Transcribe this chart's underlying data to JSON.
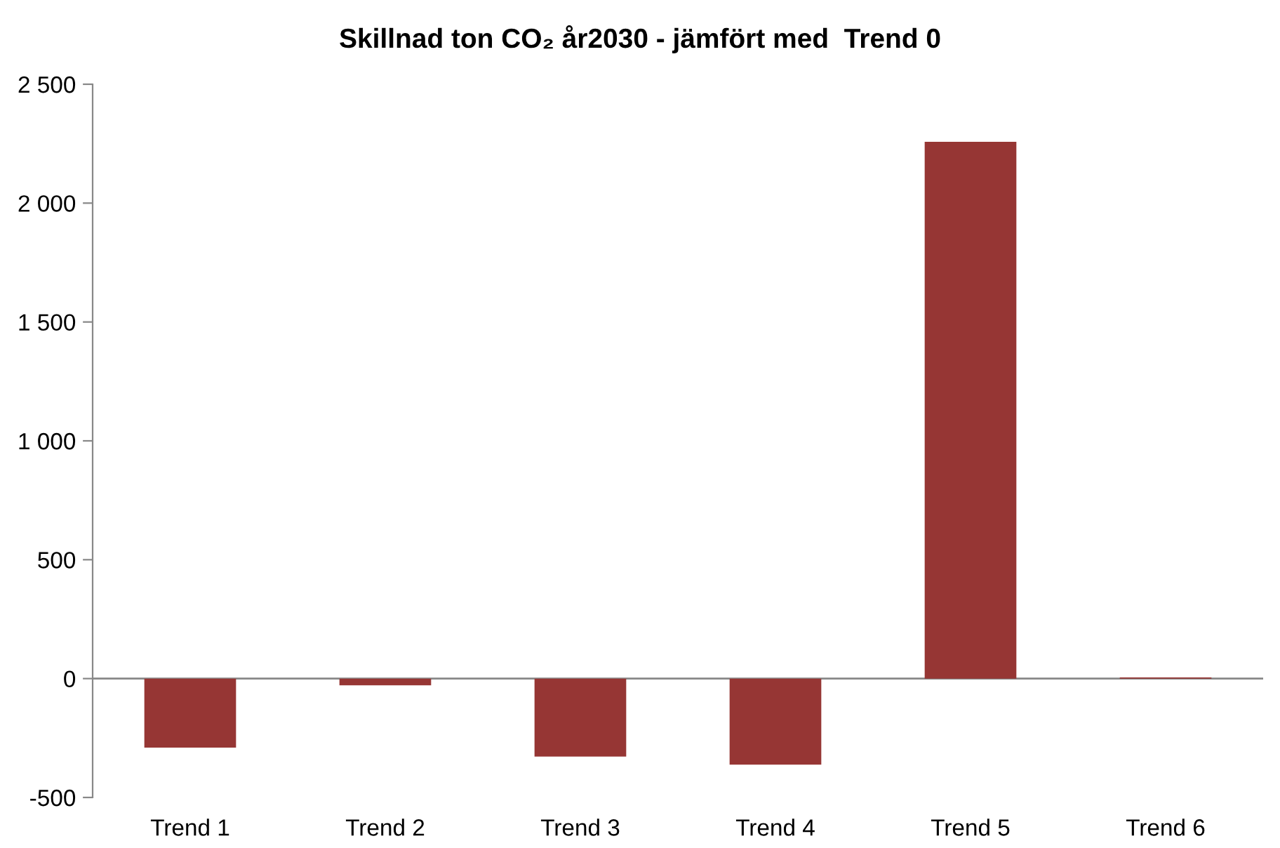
{
  "chart_data": {
    "type": "bar",
    "title": "Skillnad ton CO₂ år2030 - jämfört med  Trend 0",
    "categories": [
      "Trend 1",
      "Trend 2",
      "Trend 3",
      "Trend 4",
      "Trend 5",
      "Trend 6"
    ],
    "values": [
      -290,
      -28,
      -328,
      -362,
      2258,
      5
    ],
    "color": "#963634",
    "ylim": [
      -500,
      2500
    ],
    "yticks": [
      {
        "value": -500,
        "label": "-500"
      },
      0,
      {
        "value": 500,
        "label": "500"
      },
      {
        "value": 1000,
        "label": "1 000"
      },
      {
        "value": 1500,
        "label": "1 500"
      },
      {
        "value": 2000,
        "label": "2 000"
      },
      {
        "value": 2500,
        "label": "2 500"
      }
    ],
    "ref_lines": [
      {
        "axis": "y",
        "value": 0,
        "color": "#888888"
      }
    ],
    "grid": false,
    "legend": false
  }
}
